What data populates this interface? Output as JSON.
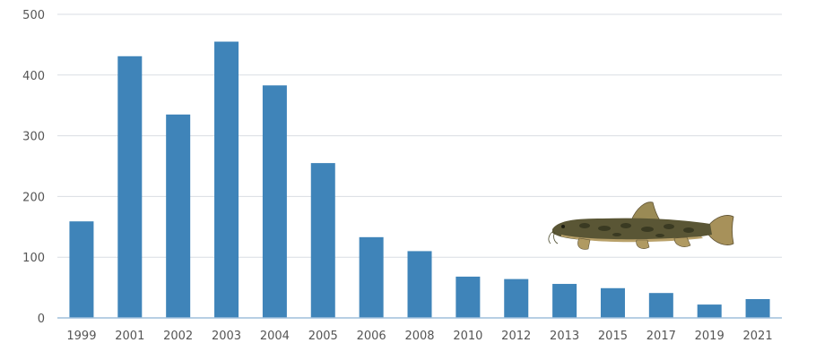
{
  "chart_data": {
    "type": "bar",
    "title": "",
    "xlabel": "",
    "ylabel": "",
    "categories": [
      "1999",
      "2001",
      "2002",
      "2003",
      "2004",
      "2005",
      "2006",
      "2008",
      "2010",
      "2012",
      "2013",
      "2015",
      "2017",
      "2019",
      "2021"
    ],
    "values": [
      159,
      431,
      335,
      455,
      383,
      255,
      133,
      110,
      68,
      64,
      56,
      49,
      41,
      22,
      31
    ],
    "ylim": [
      0,
      500
    ],
    "yticks": [
      0,
      100,
      200,
      300,
      400,
      500
    ],
    "grid": true,
    "legend": "none",
    "bar_color": "#3f84b9",
    "grid_color": "#d9dde3",
    "axis_color": "#9fbfdc",
    "illustration": "loach-fish-icon"
  }
}
